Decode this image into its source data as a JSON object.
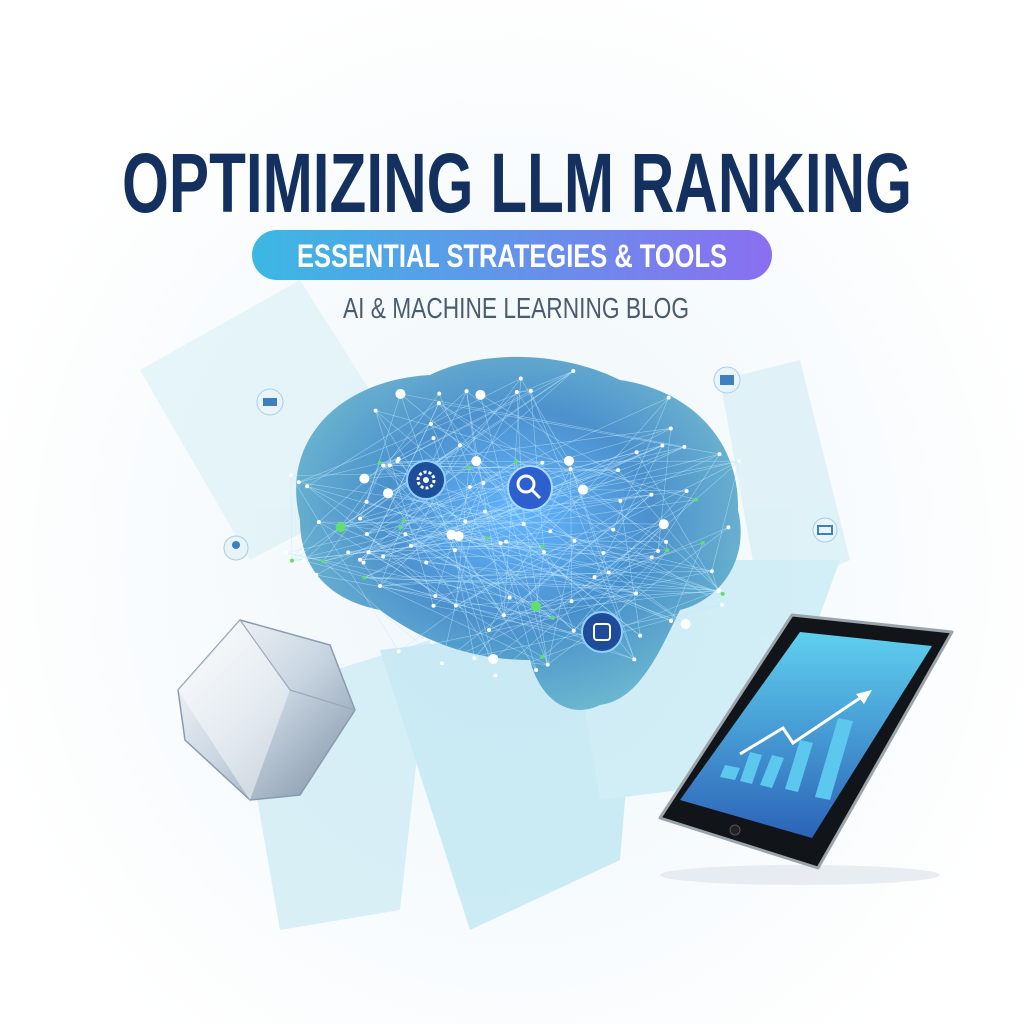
{
  "header": {
    "title": "OPTIMIZING LLM RANKING",
    "subtitle_pill": "ESSENTIAL STRATEGIES & TOOLS",
    "tagline": "AI & MACHINE LEARNING BLOG"
  },
  "colors": {
    "title": "#13305e",
    "pill_start": "#3bb8e3",
    "pill_end": "#8a6ff0",
    "tagline": "#4a5c6e",
    "brain": "#2f7fc4",
    "accent_green": "#5fe06a"
  },
  "icons": [
    "gear-icon",
    "search-icon",
    "hierarchy-icon",
    "document-icon",
    "chart-icon",
    "folder-icon",
    "list-icon",
    "person-icon"
  ],
  "illustration": {
    "elements": [
      "network-brain",
      "crystal",
      "tablet-with-growth-chart"
    ]
  }
}
